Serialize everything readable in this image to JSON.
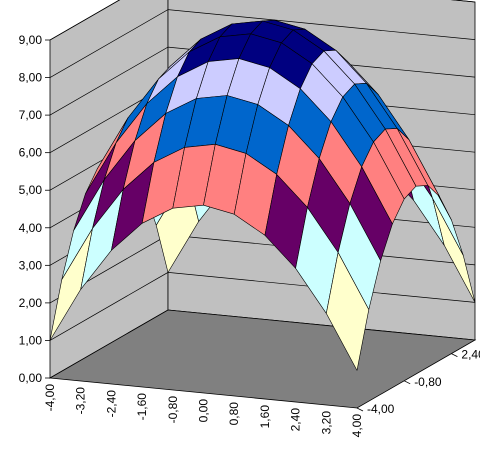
{
  "chart_data": {
    "type": "surface",
    "title": "",
    "z_axis": {
      "ticks": [
        "0,00",
        "1,00",
        "2,00",
        "3,00",
        "4,00",
        "5,00",
        "6,00",
        "7,00",
        "8,00",
        "9,00"
      ],
      "range": [
        0,
        9
      ]
    },
    "x_axis": {
      "ticks": [
        "-4,00",
        "-3,20",
        "-2,40",
        "-1,60",
        "-0,80",
        "0,00",
        "0,80",
        "1,60",
        "2,40",
        "3,20",
        "4,00"
      ],
      "range": [
        -4,
        4
      ]
    },
    "y_axis": {
      "ticks": [
        "-4,00",
        "-0,80",
        "2,40"
      ],
      "range": [
        -4,
        4
      ]
    },
    "function": "z = 9 - 0.25*(x^2 + y^2)",
    "x_values": [
      -4,
      -3.2,
      -2.4,
      -1.6,
      -0.8,
      0,
      0.8,
      1.6,
      2.4,
      3.2,
      4
    ],
    "y_values": [
      -4,
      -3.2,
      -2.4,
      -1.6,
      -0.8,
      0,
      0.8,
      1.6,
      2.4,
      3.2,
      4
    ],
    "bands": [
      {
        "range": [
          0,
          1
        ],
        "color": "#9999ff"
      },
      {
        "range": [
          1,
          2
        ],
        "color": "#993366"
      },
      {
        "range": [
          2,
          3
        ],
        "color": "#ffffcc"
      },
      {
        "range": [
          3,
          4
        ],
        "color": "#ccffff"
      },
      {
        "range": [
          4,
          5
        ],
        "color": "#660066"
      },
      {
        "range": [
          5,
          6
        ],
        "color": "#ff8080"
      },
      {
        "range": [
          6,
          7
        ],
        "color": "#0066cc"
      },
      {
        "range": [
          7,
          8
        ],
        "color": "#ccccff"
      },
      {
        "range": [
          8,
          9
        ],
        "color": "#000080"
      }
    ],
    "walls_color": "#c0c0c0",
    "floor_color": "#808080",
    "gridlines": true,
    "legend": "none"
  }
}
